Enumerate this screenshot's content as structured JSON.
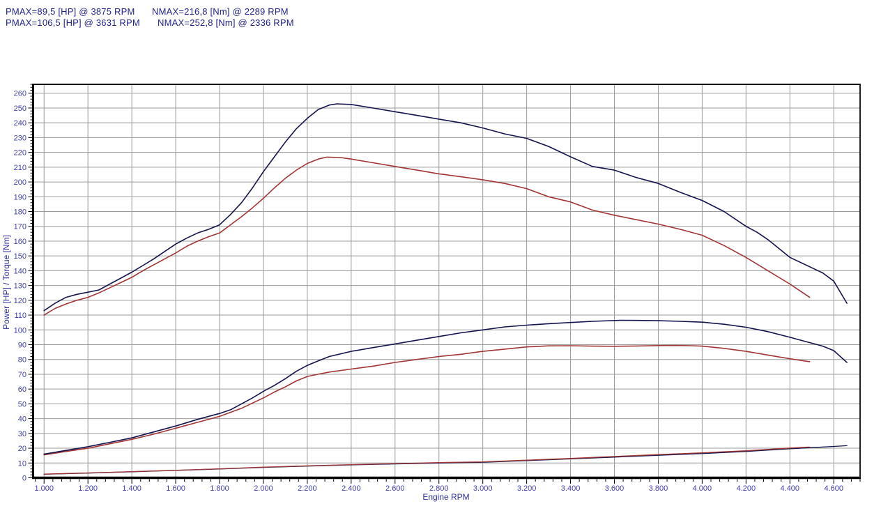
{
  "header": {
    "lines": [
      {
        "pmax": "PMAX=89,5 [HP] @ 3875 RPM",
        "nmax": "NMAX=216,8 [Nm] @ 2289 RPM"
      },
      {
        "pmax": "PMAX=106,5 [HP] @ 3631 RPM",
        "nmax": "NMAX=252,8 [Nm] @ 2336 RPM"
      }
    ]
  },
  "colors": {
    "background": "#ffffff",
    "header_text": "#22228c",
    "tick_text": "#4040a8",
    "axis_title": "#2e2e9a",
    "grid": "#9a9a9a",
    "axis": "#000000",
    "curve_red": "#a23434",
    "curve_navy": "#13134e"
  },
  "chart_data": {
    "type": "line",
    "title": "",
    "xlabel": "Engine RPM",
    "ylabel": "Power [HP] / Torque [Nm]",
    "xlim": [
      950,
      4720
    ],
    "ylim": [
      0,
      266
    ],
    "grid": true,
    "legend": "none",
    "x_tick_step": 200,
    "x_minor_tick_step": 40,
    "y_tick_step": 10,
    "y_minor_tick_step": 2,
    "x_ticks": [
      {
        "rpm": 1000,
        "label": "1.000"
      },
      {
        "rpm": 1200,
        "label": "1.200"
      },
      {
        "rpm": 1400,
        "label": "1.400"
      },
      {
        "rpm": 1600,
        "label": "1.600"
      },
      {
        "rpm": 1800,
        "label": "1.800"
      },
      {
        "rpm": 2000,
        "label": "2.000"
      },
      {
        "rpm": 2200,
        "label": "2.200"
      },
      {
        "rpm": 2400,
        "label": "2.400"
      },
      {
        "rpm": 2600,
        "label": "2.600"
      },
      {
        "rpm": 2800,
        "label": "2.800"
      },
      {
        "rpm": 3000,
        "label": "3.000"
      },
      {
        "rpm": 3200,
        "label": "3.200"
      },
      {
        "rpm": 3400,
        "label": "3.400"
      },
      {
        "rpm": 3600,
        "label": "3.600"
      },
      {
        "rpm": 3800,
        "label": "3.800"
      },
      {
        "rpm": 4000,
        "label": "4.000"
      },
      {
        "rpm": 4200,
        "label": "4.200"
      },
      {
        "rpm": 4400,
        "label": "4.400"
      },
      {
        "rpm": 4600,
        "label": "4.600"
      }
    ],
    "y_ticks": [
      0,
      10,
      20,
      30,
      40,
      50,
      60,
      70,
      80,
      90,
      100,
      110,
      120,
      130,
      140,
      150,
      160,
      170,
      180,
      190,
      200,
      210,
      220,
      230,
      240,
      250,
      260
    ],
    "peaks": [
      {
        "series": "red",
        "pmax_hp": 89.5,
        "pmax_rpm": 3875,
        "nmax_nm": 216.8,
        "nmax_rpm": 2289
      },
      {
        "series": "navy",
        "pmax_hp": 106.5,
        "pmax_rpm": 3631,
        "nmax_nm": 252.8,
        "nmax_rpm": 2336
      }
    ],
    "series": [
      {
        "name": "aux-line-navy",
        "color": "#13134e",
        "width": 1.3,
        "points": [
          [
            1000,
            2.4
          ],
          [
            1200,
            3.2
          ],
          [
            1400,
            4.1
          ],
          [
            1600,
            5.0
          ],
          [
            1800,
            6.0
          ],
          [
            2000,
            7.0
          ],
          [
            2200,
            7.9
          ],
          [
            2400,
            8.7
          ],
          [
            2600,
            9.4
          ],
          [
            2800,
            10.0
          ],
          [
            3000,
            10.5
          ],
          [
            3200,
            11.6
          ],
          [
            3400,
            12.8
          ],
          [
            3600,
            14.0
          ],
          [
            3800,
            15.2
          ],
          [
            4000,
            16.4
          ],
          [
            4200,
            17.8
          ],
          [
            4400,
            19.6
          ],
          [
            4500,
            20.4
          ],
          [
            4600,
            21.2
          ],
          [
            4660,
            21.7
          ]
        ]
      },
      {
        "name": "aux-line-red",
        "color": "#a23434",
        "width": 1.3,
        "points": [
          [
            1000,
            2.5
          ],
          [
            1200,
            3.3
          ],
          [
            1400,
            4.2
          ],
          [
            1600,
            5.1
          ],
          [
            1800,
            6.1
          ],
          [
            2000,
            7.2
          ],
          [
            2200,
            8.1
          ],
          [
            2400,
            8.9
          ],
          [
            2600,
            9.6
          ],
          [
            2800,
            10.3
          ],
          [
            3000,
            10.8
          ],
          [
            3200,
            11.9
          ],
          [
            3400,
            13.1
          ],
          [
            3600,
            14.4
          ],
          [
            3800,
            15.7
          ],
          [
            4000,
            16.9
          ],
          [
            4200,
            18.3
          ],
          [
            4400,
            20.1
          ],
          [
            4490,
            20.8
          ]
        ]
      },
      {
        "name": "torque-red",
        "color": "#a23434",
        "width": 1.6,
        "points": [
          [
            1000,
            110
          ],
          [
            1050,
            114.5
          ],
          [
            1100,
            117.5
          ],
          [
            1150,
            120
          ],
          [
            1200,
            122
          ],
          [
            1250,
            125
          ],
          [
            1300,
            128.5
          ],
          [
            1350,
            132
          ],
          [
            1400,
            135.5
          ],
          [
            1450,
            140
          ],
          [
            1500,
            144
          ],
          [
            1550,
            148
          ],
          [
            1600,
            152
          ],
          [
            1650,
            156.5
          ],
          [
            1700,
            160
          ],
          [
            1750,
            163
          ],
          [
            1800,
            165.5
          ],
          [
            1850,
            171
          ],
          [
            1900,
            176.5
          ],
          [
            1950,
            182.5
          ],
          [
            2000,
            189
          ],
          [
            2050,
            196
          ],
          [
            2100,
            202.5
          ],
          [
            2150,
            208
          ],
          [
            2200,
            212.5
          ],
          [
            2250,
            215.5
          ],
          [
            2289,
            216.8
          ],
          [
            2350,
            216.5
          ],
          [
            2400,
            215.5
          ],
          [
            2500,
            213
          ],
          [
            2600,
            210.5
          ],
          [
            2700,
            208
          ],
          [
            2800,
            205.5
          ],
          [
            2900,
            203.5
          ],
          [
            3000,
            201.5
          ],
          [
            3100,
            199
          ],
          [
            3200,
            195.5
          ],
          [
            3300,
            190
          ],
          [
            3400,
            186.5
          ],
          [
            3500,
            181
          ],
          [
            3600,
            177.5
          ],
          [
            3700,
            174.5
          ],
          [
            3800,
            171.5
          ],
          [
            3900,
            168
          ],
          [
            4000,
            164
          ],
          [
            4100,
            157
          ],
          [
            4200,
            149
          ],
          [
            4300,
            140
          ],
          [
            4400,
            131
          ],
          [
            4450,
            126
          ],
          [
            4490,
            122
          ]
        ]
      },
      {
        "name": "power-red",
        "color": "#a23434",
        "width": 1.6,
        "points": [
          [
            1000,
            15.5
          ],
          [
            1100,
            17.8
          ],
          [
            1200,
            20
          ],
          [
            1300,
            23
          ],
          [
            1400,
            26
          ],
          [
            1500,
            29.5
          ],
          [
            1600,
            33.5
          ],
          [
            1700,
            37.5
          ],
          [
            1800,
            41.5
          ],
          [
            1900,
            47
          ],
          [
            1950,
            50.5
          ],
          [
            2000,
            54
          ],
          [
            2050,
            58
          ],
          [
            2100,
            61.5
          ],
          [
            2150,
            65.5
          ],
          [
            2200,
            68.5
          ],
          [
            2250,
            70
          ],
          [
            2300,
            71.5
          ],
          [
            2400,
            73.5
          ],
          [
            2500,
            75.5
          ],
          [
            2600,
            78
          ],
          [
            2700,
            80
          ],
          [
            2800,
            82
          ],
          [
            2900,
            83.5
          ],
          [
            3000,
            85.5
          ],
          [
            3100,
            87
          ],
          [
            3200,
            88.5
          ],
          [
            3300,
            89.2
          ],
          [
            3400,
            89.3
          ],
          [
            3500,
            89
          ],
          [
            3600,
            88.9
          ],
          [
            3700,
            89.1
          ],
          [
            3800,
            89.4
          ],
          [
            3875,
            89.5
          ],
          [
            3950,
            89.3
          ],
          [
            4000,
            89
          ],
          [
            4100,
            87.5
          ],
          [
            4200,
            85.5
          ],
          [
            4300,
            83
          ],
          [
            4400,
            80.5
          ],
          [
            4490,
            78.5
          ]
        ]
      },
      {
        "name": "torque-navy",
        "color": "#13134e",
        "width": 1.6,
        "points": [
          [
            1000,
            113
          ],
          [
            1050,
            118
          ],
          [
            1100,
            122
          ],
          [
            1150,
            124
          ],
          [
            1200,
            125.5
          ],
          [
            1250,
            127
          ],
          [
            1300,
            131
          ],
          [
            1350,
            135
          ],
          [
            1400,
            139
          ],
          [
            1450,
            143.5
          ],
          [
            1500,
            148
          ],
          [
            1550,
            153
          ],
          [
            1600,
            158
          ],
          [
            1650,
            162
          ],
          [
            1700,
            165.5
          ],
          [
            1750,
            168
          ],
          [
            1800,
            171
          ],
          [
            1850,
            178
          ],
          [
            1900,
            186
          ],
          [
            1950,
            196
          ],
          [
            2000,
            207
          ],
          [
            2050,
            217
          ],
          [
            2100,
            227
          ],
          [
            2150,
            236
          ],
          [
            2200,
            243
          ],
          [
            2250,
            249
          ],
          [
            2300,
            252
          ],
          [
            2336,
            252.8
          ],
          [
            2400,
            252.4
          ],
          [
            2500,
            250
          ],
          [
            2600,
            247.5
          ],
          [
            2700,
            245
          ],
          [
            2800,
            242.5
          ],
          [
            2900,
            240
          ],
          [
            3000,
            236.5
          ],
          [
            3100,
            232.5
          ],
          [
            3200,
            229.5
          ],
          [
            3300,
            224
          ],
          [
            3400,
            217
          ],
          [
            3500,
            210.5
          ],
          [
            3600,
            208
          ],
          [
            3700,
            203
          ],
          [
            3800,
            199
          ],
          [
            3900,
            193
          ],
          [
            4000,
            187.5
          ],
          [
            4100,
            180
          ],
          [
            4200,
            170
          ],
          [
            4250,
            166
          ],
          [
            4300,
            161
          ],
          [
            4400,
            149
          ],
          [
            4500,
            142
          ],
          [
            4550,
            138.5
          ],
          [
            4600,
            133
          ],
          [
            4660,
            118
          ]
        ]
      },
      {
        "name": "power-navy",
        "color": "#13134e",
        "width": 1.6,
        "points": [
          [
            1000,
            16
          ],
          [
            1100,
            18.5
          ],
          [
            1200,
            21
          ],
          [
            1300,
            24
          ],
          [
            1400,
            27
          ],
          [
            1500,
            31
          ],
          [
            1600,
            35
          ],
          [
            1700,
            39.5
          ],
          [
            1800,
            43.5
          ],
          [
            1850,
            46
          ],
          [
            1900,
            50
          ],
          [
            1950,
            54
          ],
          [
            2000,
            58.5
          ],
          [
            2050,
            62.5
          ],
          [
            2100,
            67
          ],
          [
            2150,
            72
          ],
          [
            2200,
            76
          ],
          [
            2250,
            79
          ],
          [
            2300,
            82
          ],
          [
            2400,
            85.5
          ],
          [
            2500,
            88
          ],
          [
            2600,
            90.5
          ],
          [
            2700,
            93
          ],
          [
            2800,
            95.5
          ],
          [
            2900,
            98
          ],
          [
            3000,
            100
          ],
          [
            3100,
            102
          ],
          [
            3200,
            103.2
          ],
          [
            3300,
            104.2
          ],
          [
            3400,
            105
          ],
          [
            3500,
            105.8
          ],
          [
            3631,
            106.5
          ],
          [
            3700,
            106.4
          ],
          [
            3800,
            106.2
          ],
          [
            3900,
            105.8
          ],
          [
            4000,
            105.2
          ],
          [
            4100,
            103.8
          ],
          [
            4200,
            101.8
          ],
          [
            4300,
            98.8
          ],
          [
            4400,
            95
          ],
          [
            4500,
            91
          ],
          [
            4550,
            89
          ],
          [
            4600,
            86
          ],
          [
            4660,
            78
          ]
        ]
      }
    ]
  }
}
